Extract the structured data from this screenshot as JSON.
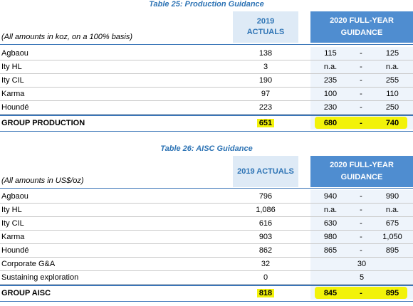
{
  "production": {
    "title": "Table 25: Production Guidance",
    "note": "(All amounts in koz, on a 100% basis)",
    "actuals_header": "2019\nACTUALS",
    "actuals_header_l1": "2019",
    "actuals_header_l2": "ACTUALS",
    "guidance_header_l1": "2020 FULL-YEAR",
    "guidance_header_l2": "GUIDANCE",
    "rows": [
      {
        "name": "Agbaou",
        "actual": "138",
        "low": "115",
        "dash": "-",
        "high": "125"
      },
      {
        "name": "Ity HL",
        "actual": "3",
        "low": "n.a.",
        "dash": "-",
        "high": "n.a."
      },
      {
        "name": "Ity CIL",
        "actual": "190",
        "low": "235",
        "dash": "-",
        "high": "255"
      },
      {
        "name": "Karma",
        "actual": "97",
        "low": "100",
        "dash": "-",
        "high": "110"
      },
      {
        "name": "Houndé",
        "actual": "223",
        "low": "230",
        "dash": "-",
        "high": "250"
      }
    ],
    "total": {
      "name": "GROUP PRODUCTION",
      "actual": "651",
      "low": "680",
      "dash": "-",
      "high": "740"
    }
  },
  "aisc": {
    "title": "Table 26: AISC Guidance",
    "note": "(All amounts in US$/oz)",
    "actuals_header": "2019 ACTUALS",
    "guidance_header_l1": "2020 FULL-YEAR",
    "guidance_header_l2": "GUIDANCE",
    "rows": [
      {
        "name": "Agbaou",
        "actual": "796",
        "low": "940",
        "dash": "-",
        "high": "990"
      },
      {
        "name": "Ity HL",
        "actual": "1,086",
        "low": "n.a.",
        "dash": "-",
        "high": "n.a."
      },
      {
        "name": "Ity CIL",
        "actual": "616",
        "low": "630",
        "dash": "-",
        "high": "675"
      },
      {
        "name": "Karma",
        "actual": "903",
        "low": "980",
        "dash": "-",
        "high": "1,050"
      },
      {
        "name": "Houndé",
        "actual": "862",
        "low": "865",
        "dash": "-",
        "high": "895"
      }
    ],
    "single_rows": [
      {
        "name": "Corporate G&A",
        "actual": "32",
        "guidance": "30"
      },
      {
        "name": "Sustaining exploration",
        "actual": "0",
        "guidance": "5"
      }
    ],
    "total": {
      "name": "GROUP AISC",
      "actual": "818",
      "low": "845",
      "dash": "-",
      "high": "895"
    }
  },
  "colors": {
    "title_blue": "#2e74b5",
    "header_light": "#deeaf6",
    "header_dark": "#4f8dd0",
    "highlight": "#f2f20a"
  }
}
